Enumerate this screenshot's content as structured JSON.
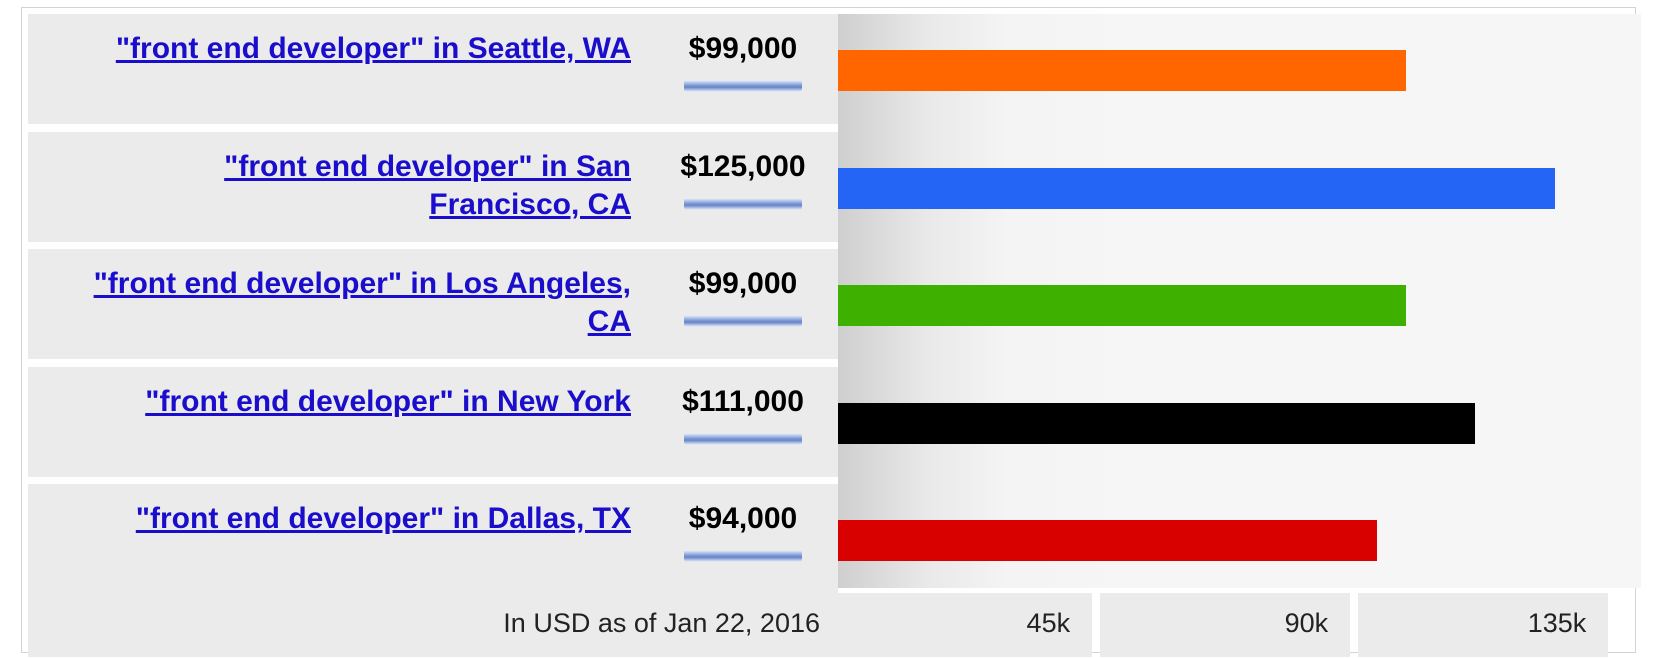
{
  "chart_data": {
    "type": "bar",
    "orientation": "horizontal",
    "categories": [
      "\"front end developer\" in Seattle, WA",
      "\"front end developer\" in San Francisco, CA",
      "\"front end developer\" in Los Angeles, CA",
      "\"front end developer\" in New York",
      "\"front end developer\" in Dallas, TX"
    ],
    "values": [
      99000,
      125000,
      99000,
      111000,
      94000
    ],
    "value_labels": [
      "$99,000",
      "$125,000",
      "$99,000",
      "$111,000",
      "$94,000"
    ],
    "bar_colors": [
      "#ff6600",
      "#2565f5",
      "#3db000",
      "#000000",
      "#d90000"
    ],
    "xlim": [
      0,
      140000
    ],
    "x_ticks": [
      45000,
      90000,
      135000
    ],
    "x_tick_labels": [
      "45k",
      "90k",
      "135k"
    ],
    "footer_note": "In USD as of Jan 22, 2016",
    "grid": false,
    "legend": "none"
  }
}
